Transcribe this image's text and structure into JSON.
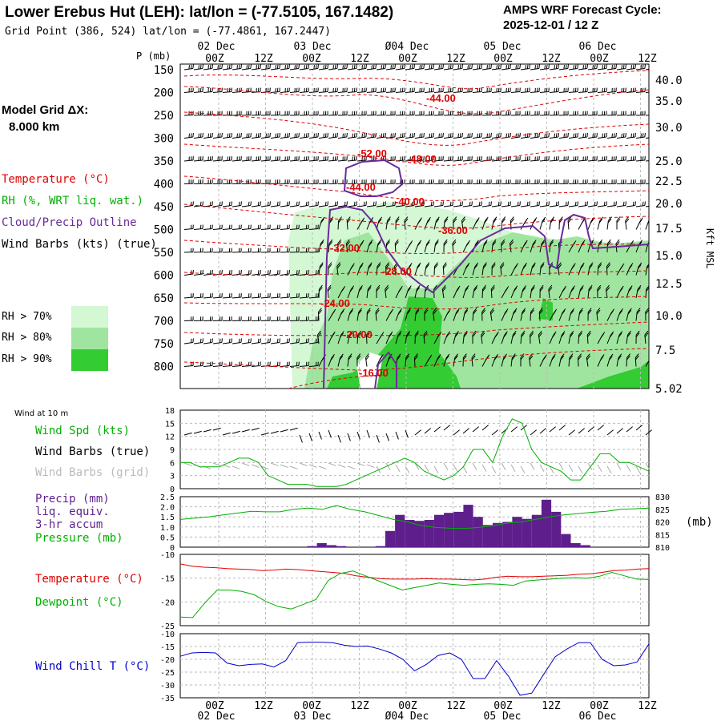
{
  "header": {
    "title": "Lower Erebus Hut (LEH):  lat/lon = (-77.5105, 167.1482)",
    "cycle_line1": "AMPS WRF Forecast Cycle:",
    "cycle_line2": "2025-12-01 / 12  Z",
    "grid_point": "Grid Point (386, 524) lat/lon = (-77.4861, 167.2447)",
    "model_grid_line1": "Model Grid ΔX:",
    "model_grid_line2": "8.000 km"
  },
  "legend": {
    "temperature": "Temperature (°C)",
    "rh": "RH (%, WRT liq. wat.)",
    "cloud": "Cloud/Precip Outline",
    "wind": "Wind Barbs (kts) (true)",
    "rh70": "RH > 70%",
    "rh80": "RH > 80%",
    "rh90": "RH > 90%"
  },
  "colors": {
    "temperature": "#e00000",
    "rh": "#00b000",
    "cloud": "#6a2a9a",
    "rh70": "#d4f7d4",
    "rh80": "#9fe59f",
    "rh90": "#33cc33",
    "precip": "#5e1f8c",
    "windchill": "#0000cc",
    "grid_barb": "#aaaaaa"
  },
  "chart_data": [
    {
      "type": "contour",
      "title": "Vertical time section",
      "ylabel": "P (mb)",
      "right_label": "Kft MSL",
      "pressure_levels": [
        150,
        200,
        250,
        300,
        350,
        400,
        450,
        500,
        550,
        600,
        650,
        700,
        750,
        800
      ],
      "height_ticks": [
        "40.0",
        "35.0",
        "30.0",
        "25.0",
        "22.5",
        "20.0",
        "17.5",
        "15.0",
        "12.5",
        "10.0",
        "7.5",
        "5.02"
      ],
      "time_ticks_top": [
        "00Z",
        "12Z",
        "00Z",
        "12Z",
        "00Z",
        "12Z",
        "00Z",
        "12Z",
        "00Z",
        "12Z"
      ],
      "date_ticks": [
        "02 Dec",
        "03 Dec",
        "Ø04 Dec",
        "05 Dec",
        "06 Dec"
      ],
      "temperature_contour_labels": [
        "-44.00",
        "-52.00",
        "-48.00",
        "-44.00",
        "-40.00",
        "-36.00",
        "-32.00",
        "-28.00",
        "-24.00",
        "-20.00",
        "-16.00"
      ]
    },
    {
      "type": "line",
      "panel_label": "Wind at 10 m",
      "series_labels": [
        "Wind Spd (kts)",
        "Wind Barbs (true)",
        "Wind Barbs (grid)"
      ],
      "y_ticks": [
        "18",
        "15",
        "12",
        "9",
        "6",
        "3",
        "0"
      ],
      "ylim": [
        0,
        18
      ],
      "series": [
        {
          "name": "Wind Spd (kts)",
          "values": [
            6,
            6,
            5,
            5,
            5,
            6,
            7,
            7,
            6,
            3,
            2,
            1,
            1,
            1,
            0.5,
            0.5,
            0.5,
            1,
            2,
            3,
            4,
            5,
            6,
            7,
            6,
            4,
            3,
            2,
            3,
            5,
            9,
            9,
            6,
            12,
            16,
            15,
            9,
            6,
            5,
            4,
            2,
            2,
            5,
            8,
            8,
            6,
            6,
            5,
            4
          ]
        }
      ]
    },
    {
      "type": "bar",
      "series_labels": [
        "Precip (mm)",
        "liq. equiv.",
        "3-hr accum",
        "Pressure (mb)"
      ],
      "y_ticks_left": [
        "2.5",
        "2.0",
        "1.5",
        "1.0",
        "0.5",
        "0"
      ],
      "y_ticks_right": [
        "830",
        "825",
        "820",
        "815",
        "810"
      ],
      "right_unit": "(mb)",
      "ylim": [
        0,
        2.5
      ],
      "precip_values": [
        0,
        0,
        0,
        0,
        0,
        0,
        0,
        0,
        0,
        0,
        0,
        0,
        0,
        0.05,
        0.2,
        0.1,
        0.05,
        0,
        0,
        0,
        0.05,
        0.8,
        1.6,
        1.35,
        1.3,
        1.35,
        1.6,
        1.7,
        1.75,
        2.1,
        1.5,
        1.1,
        1.2,
        1.25,
        1.5,
        1.4,
        1.6,
        2.35,
        1.75,
        0.65,
        0.2,
        0.1,
        0,
        0,
        0,
        0,
        0,
        0
      ],
      "pressure_values": [
        821,
        821.5,
        822,
        822.8,
        823.5,
        824.2,
        824,
        824,
        825,
        825.5,
        825,
        826.5,
        825,
        824,
        822.5,
        821,
        820,
        818.5,
        817.8,
        817.5,
        817.4,
        817.8,
        818.5,
        819.5,
        820,
        821,
        822,
        822.8,
        823.3,
        823.8,
        824.2,
        825,
        825.2,
        825.5
      ]
    },
    {
      "type": "line",
      "series_labels": [
        "Temperature (°C)",
        "Dewpoint (°C)"
      ],
      "y_ticks": [
        "-10",
        "-15",
        "-20",
        "-25"
      ],
      "ylim": [
        -25,
        -10
      ],
      "series": [
        {
          "name": "Temperature",
          "values": [
            -12,
            -12.5,
            -12.7,
            -12.8,
            -13,
            -13.1,
            -13.2,
            -13.4,
            -13.3,
            -13.1,
            -13.2,
            -13.4,
            -13.6,
            -13.8,
            -14,
            -14.5,
            -14.8,
            -15.1,
            -15.2,
            -15.2,
            -15.2,
            -15.1,
            -15.2,
            -15.2,
            -15.3,
            -15.4,
            -15.2,
            -14.8,
            -14.6,
            -14.7,
            -14.7,
            -14.6,
            -14.5,
            -14.4,
            -14.2,
            -14.1,
            -13.8,
            -13.4,
            -13.3,
            -13.1,
            -13
          ]
        },
        {
          "name": "Dewpoint",
          "values": [
            -23.2,
            -23.3,
            -20.2,
            -17.5,
            -17.5,
            -17.8,
            -18.5,
            -20,
            -21,
            -21.5,
            -20.5,
            -19.5,
            -15.5,
            -14,
            -13.5,
            -14.5,
            -15.5,
            -16.5,
            -17.5,
            -17,
            -16.5,
            -16,
            -16.3,
            -16.5,
            -16.3,
            -16.2,
            -16.3,
            -16.5,
            -15.6,
            -15.4,
            -15.2,
            -15,
            -14.9,
            -15,
            -14.6,
            -13.8,
            -14.5,
            -15.2,
            -15.3
          ]
        }
      ]
    },
    {
      "type": "line",
      "series_labels": [
        "Wind Chill T (°C)"
      ],
      "y_ticks": [
        "-10",
        "-15",
        "-20",
        "-25",
        "-30",
        "-35"
      ],
      "ylim": [
        -35,
        -10
      ],
      "series": [
        {
          "name": "Wind Chill T",
          "values": [
            -18.8,
            -17.5,
            -17.3,
            -17.5,
            -21.5,
            -22.5,
            -22,
            -21.8,
            -23,
            -20.5,
            -13.5,
            -13.3,
            -13.3,
            -13.5,
            -14.5,
            -15,
            -14.8,
            -16,
            -17.5,
            -20,
            -24.5,
            -22,
            -18.5,
            -17.5,
            -20,
            -27.5,
            -27.5,
            -20.5,
            -26.5,
            -34,
            -33.2,
            -26,
            -19,
            -16,
            -13.5,
            -13.5,
            -20,
            -22.5,
            -22.2,
            -21,
            -14
          ]
        }
      ]
    }
  ],
  "axes": {
    "bottom_times": [
      "00Z",
      "12Z",
      "00Z",
      "12Z",
      "00Z",
      "12Z",
      "00Z",
      "12Z",
      "00Z",
      "12Z"
    ],
    "bottom_dates": [
      "02 Dec",
      "03 Dec",
      "Ø04 Dec",
      "05 Dec",
      "06 Dec"
    ]
  }
}
